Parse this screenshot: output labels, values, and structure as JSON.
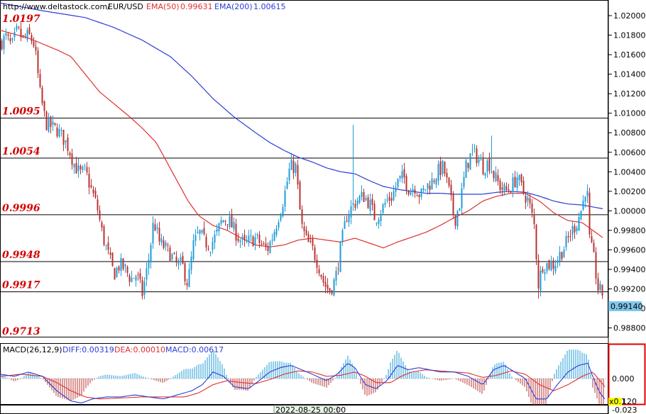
{
  "header": {
    "url": "http://www.deltastock.com/",
    "symbol": "EUR/USD",
    "ema50_label": "EMA(50)",
    "ema50_value": "0.99631",
    "ema200_label": "EMA(200)",
    "ema200_value": "1.00615"
  },
  "macd_header": {
    "name": "MACD(26,12,9)",
    "diff": "DIFF:0.00319",
    "dea": "DEA:0.00010",
    "macd": "MACD:0.00617"
  },
  "time_label": "2022-08-25 00:00",
  "price_badge": "0.99140",
  "macd_axis": {
    "zero_label": "0.000",
    "bottom_label": "-0.023",
    "scale_badge": "x0.1",
    "scale_value": "120"
  },
  "colors": {
    "bull": "#1f9bd7",
    "bear": "#b83232",
    "ema50": "#e03030",
    "ema200": "#2a3fd6",
    "level_text": "#d40000"
  },
  "chart_data": {
    "type": "candlestick",
    "symbol": "EUR/USD",
    "y_ticks": [
      1.02,
      1.018,
      1.016,
      1.014,
      1.012,
      1.01,
      1.008,
      1.006,
      1.004,
      1.002,
      1.0,
      0.998,
      0.996,
      0.994,
      0.992,
      0.99,
      0.988
    ],
    "y_tick_labels": [
      "1.02000",
      "1.01800",
      "1.01600",
      "1.01400",
      "1.01200",
      "1.01000",
      "1.00800",
      "1.00600",
      "1.00400",
      "1.00200",
      "1.00000",
      "0.99800",
      "0.99600",
      "0.99400",
      "0.99200",
      "0.99000",
      "0.98800"
    ],
    "ylim": [
      0.9871,
      1.0216
    ],
    "levels": [
      {
        "label": "1.0197",
        "value": 1.0197,
        "line": false
      },
      {
        "label": "1.0095",
        "value": 1.0095,
        "line": true
      },
      {
        "label": "1.0054",
        "value": 1.0054,
        "line": true
      },
      {
        "label": "0.9996",
        "value": 0.9996,
        "line": true
      },
      {
        "label": "0.9948",
        "value": 0.9948,
        "line": true
      },
      {
        "label": "0.9917",
        "value": 0.9917,
        "line": true
      },
      {
        "label": "0.9713",
        "value": 0.9713,
        "line": false
      }
    ],
    "close_anchors": [
      [
        0,
        1.0172
      ],
      [
        8,
        1.0178
      ],
      [
        16,
        1.0168
      ],
      [
        24,
        1.0185
      ],
      [
        32,
        1.0175
      ],
      [
        40,
        1.018
      ],
      [
        48,
        1.017
      ],
      [
        56,
        1.012
      ],
      [
        64,
        1.009
      ],
      [
        72,
        1.0086
      ],
      [
        80,
        1.0083
      ],
      [
        88,
        1.0075
      ],
      [
        96,
        1.0065
      ],
      [
        104,
        1.0048
      ],
      [
        112,
        1.0038
      ],
      [
        120,
        1.004
      ],
      [
        128,
        1.0022
      ],
      [
        136,
        1.0005
      ],
      [
        144,
        0.9975
      ],
      [
        152,
        0.9955
      ],
      [
        160,
        0.9935
      ],
      [
        168,
        0.9945
      ],
      [
        176,
        0.994
      ],
      [
        184,
        0.993
      ],
      [
        192,
        0.9935
      ],
      [
        200,
        0.9915
      ],
      [
        208,
        0.9945
      ],
      [
        216,
        0.999
      ],
      [
        224,
        0.9968
      ],
      [
        232,
        0.9962
      ],
      [
        240,
        0.9955
      ],
      [
        248,
        0.9945
      ],
      [
        256,
        0.9945
      ],
      [
        264,
        0.9925
      ],
      [
        272,
        0.9965
      ],
      [
        280,
        0.9978
      ],
      [
        288,
        0.9968
      ],
      [
        296,
        0.9965
      ],
      [
        304,
        0.9975
      ],
      [
        312,
        0.999
      ],
      [
        320,
        0.9992
      ],
      [
        328,
        0.9982
      ],
      [
        336,
        0.9972
      ],
      [
        344,
        0.9965
      ],
      [
        352,
        0.997
      ],
      [
        360,
        0.9972
      ],
      [
        368,
        0.9965
      ],
      [
        376,
        0.996
      ],
      [
        384,
        0.9975
      ],
      [
        392,
        0.9995
      ],
      [
        400,
        1.0015
      ],
      [
        408,
        1.0045
      ],
      [
        416,
        1.0045
      ],
      [
        424,
        0.9985
      ],
      [
        432,
        0.9968
      ],
      [
        440,
        0.996
      ],
      [
        448,
        0.9945
      ],
      [
        456,
        0.9925
      ],
      [
        464,
        0.9918
      ],
      [
        472,
        0.993
      ],
      [
        480,
        0.9965
      ],
      [
        488,
        0.9995
      ],
      [
        496,
        1.0005
      ],
      [
        504,
        1.0012
      ],
      [
        512,
        1.0015
      ],
      [
        520,
        1.0008
      ],
      [
        528,
        0.9992
      ],
      [
        536,
        1.0
      ],
      [
        544,
        1.001
      ],
      [
        552,
        1.0015
      ],
      [
        560,
        1.003
      ],
      [
        568,
        1.0035
      ],
      [
        576,
        1.0022
      ],
      [
        584,
        1.0025
      ],
      [
        592,
        1.0015
      ],
      [
        600,
        1.0025
      ],
      [
        608,
        1.003
      ],
      [
        616,
        1.004
      ],
      [
        624,
        1.0045
      ],
      [
        632,
        1.002
      ],
      [
        640,
        0.999
      ],
      [
        648,
        1.001
      ],
      [
        656,
        1.0045
      ],
      [
        664,
        1.006
      ],
      [
        672,
        1.0055
      ],
      [
        680,
        1.0045
      ],
      [
        688,
        1.005
      ],
      [
        696,
        1.0035
      ],
      [
        704,
        1.0025
      ],
      [
        712,
        1.002
      ],
      [
        720,
        1.0025
      ],
      [
        728,
        1.0035
      ],
      [
        736,
        1.002
      ],
      [
        744,
        1.001
      ],
      [
        752,
        0.9985
      ],
      [
        758,
        0.9925
      ],
      [
        764,
        0.9945
      ],
      [
        772,
        0.9945
      ],
      [
        780,
        0.9945
      ],
      [
        788,
        0.9955
      ],
      [
        796,
        0.9965
      ],
      [
        804,
        0.9978
      ],
      [
        812,
        0.9988
      ],
      [
        820,
        1.0005
      ],
      [
        826,
        1.003
      ],
      [
        830,
        0.997
      ],
      [
        836,
        0.995
      ],
      [
        842,
        0.992
      ],
      [
        850,
        0.9914
      ]
    ],
    "ema50_anchors": [
      [
        0,
        1.0185
      ],
      [
        40,
        1.0177
      ],
      [
        80,
        1.0165
      ],
      [
        100,
        1.0158
      ],
      [
        120,
        1.014
      ],
      [
        140,
        1.0122
      ],
      [
        160,
        1.011
      ],
      [
        180,
        1.0098
      ],
      [
        200,
        1.0085
      ],
      [
        220,
        1.007
      ],
      [
        235,
        1.005
      ],
      [
        250,
        1.003
      ],
      [
        265,
        1.001
      ],
      [
        280,
        0.9995
      ],
      [
        300,
        0.9985
      ],
      [
        320,
        0.998
      ],
      [
        340,
        0.9972
      ],
      [
        360,
        0.9965
      ],
      [
        380,
        0.9963
      ],
      [
        400,
        0.9965
      ],
      [
        420,
        0.997
      ],
      [
        440,
        0.9972
      ],
      [
        460,
        0.997
      ],
      [
        480,
        0.9968
      ],
      [
        500,
        0.9972
      ],
      [
        520,
        0.9967
      ],
      [
        540,
        0.9962
      ],
      [
        560,
        0.9968
      ],
      [
        580,
        0.9973
      ],
      [
        600,
        0.9978
      ],
      [
        620,
        0.9985
      ],
      [
        640,
        0.9993
      ],
      [
        660,
        1.0
      ],
      [
        680,
        1.001
      ],
      [
        700,
        1.0015
      ],
      [
        720,
        1.0018
      ],
      [
        740,
        1.0018
      ],
      [
        760,
        1.001
      ],
      [
        780,
        0.9998
      ],
      [
        800,
        0.999
      ],
      [
        820,
        0.9988
      ],
      [
        835,
        0.998
      ],
      [
        850,
        0.9972
      ]
    ],
    "ema200_anchors": [
      [
        0,
        1.0213
      ],
      [
        60,
        1.0205
      ],
      [
        120,
        1.0198
      ],
      [
        160,
        1.0188
      ],
      [
        200,
        1.0175
      ],
      [
        240,
        1.0158
      ],
      [
        270,
        1.0138
      ],
      [
        300,
        1.0115
      ],
      [
        330,
        1.0096
      ],
      [
        360,
        1.008
      ],
      [
        380,
        1.007
      ],
      [
        400,
        1.0062
      ],
      [
        420,
        1.0055
      ],
      [
        440,
        1.005
      ],
      [
        460,
        1.0044
      ],
      [
        480,
        1.004
      ],
      [
        500,
        1.0038
      ],
      [
        520,
        1.0031
      ],
      [
        540,
        1.0025
      ],
      [
        560,
        1.0022
      ],
      [
        580,
        1.002
      ],
      [
        600,
        1.0018
      ],
      [
        620,
        1.0018
      ],
      [
        640,
        1.0017
      ],
      [
        660,
        1.0017
      ],
      [
        680,
        1.0017
      ],
      [
        700,
        1.0019
      ],
      [
        720,
        1.002
      ],
      [
        740,
        1.0019
      ],
      [
        760,
        1.0015
      ],
      [
        780,
        1.001
      ],
      [
        800,
        1.0007
      ],
      [
        820,
        1.0006
      ],
      [
        850,
        1.0002
      ]
    ],
    "macd_diff_anchors": [
      [
        0,
        0.2
      ],
      [
        20,
        0.1
      ],
      [
        40,
        0.3
      ],
      [
        60,
        0.1
      ],
      [
        80,
        -0.6
      ],
      [
        100,
        -1.1
      ],
      [
        115,
        -1.2
      ],
      [
        130,
        -1.0
      ],
      [
        150,
        -0.9
      ],
      [
        170,
        -0.9
      ],
      [
        190,
        -0.8
      ],
      [
        210,
        -0.9
      ],
      [
        230,
        -1.0
      ],
      [
        250,
        -0.8
      ],
      [
        270,
        -0.6
      ],
      [
        285,
        -0.3
      ],
      [
        300,
        0.3
      ],
      [
        315,
        0.1
      ],
      [
        330,
        -0.4
      ],
      [
        350,
        -0.5
      ],
      [
        365,
        -0.1
      ],
      [
        380,
        0.3
      ],
      [
        395,
        0.5
      ],
      [
        410,
        0.6
      ],
      [
        425,
        0.4
      ],
      [
        440,
        0.2
      ],
      [
        460,
        -0.1
      ],
      [
        475,
        0.2
      ],
      [
        490,
        0.7
      ],
      [
        500,
        0.5
      ],
      [
        515,
        -0.3
      ],
      [
        530,
        -0.5
      ],
      [
        545,
        -0.1
      ],
      [
        560,
        0.6
      ],
      [
        575,
        0.4
      ],
      [
        590,
        0.5
      ],
      [
        605,
        0.4
      ],
      [
        620,
        0.3
      ],
      [
        640,
        0.3
      ],
      [
        660,
        0.1
      ],
      [
        680,
        -0.3
      ],
      [
        695,
        0.4
      ],
      [
        710,
        0.6
      ],
      [
        725,
        0.3
      ],
      [
        740,
        0.0
      ],
      [
        755,
        -1.0
      ],
      [
        770,
        -1.0
      ],
      [
        785,
        -0.3
      ],
      [
        800,
        0.3
      ],
      [
        815,
        0.6
      ],
      [
        828,
        0.7
      ],
      [
        835,
        0.1
      ],
      [
        845,
        -0.7
      ],
      [
        852,
        -1.0
      ]
    ],
    "macd_dea_anchors": [
      [
        0,
        0.1
      ],
      [
        30,
        0.2
      ],
      [
        60,
        0.1
      ],
      [
        80,
        -0.2
      ],
      [
        100,
        -0.6
      ],
      [
        120,
        -0.9
      ],
      [
        140,
        -1.0
      ],
      [
        170,
        -0.95
      ],
      [
        200,
        -0.9
      ],
      [
        230,
        -0.9
      ],
      [
        260,
        -0.9
      ],
      [
        280,
        -0.7
      ],
      [
        300,
        -0.3
      ],
      [
        320,
        -0.1
      ],
      [
        340,
        -0.2
      ],
      [
        360,
        -0.25
      ],
      [
        380,
        -0.05
      ],
      [
        400,
        0.2
      ],
      [
        420,
        0.35
      ],
      [
        440,
        0.3
      ],
      [
        460,
        0.1
      ],
      [
        480,
        0.15
      ],
      [
        500,
        0.3
      ],
      [
        515,
        0.1
      ],
      [
        530,
        -0.2
      ],
      [
        550,
        -0.2
      ],
      [
        565,
        0.1
      ],
      [
        580,
        0.3
      ],
      [
        600,
        0.4
      ],
      [
        620,
        0.35
      ],
      [
        640,
        0.3
      ],
      [
        660,
        0.25
      ],
      [
        680,
        0.05
      ],
      [
        700,
        0.15
      ],
      [
        720,
        0.35
      ],
      [
        740,
        0.2
      ],
      [
        760,
        -0.3
      ],
      [
        780,
        -0.6
      ],
      [
        800,
        -0.3
      ],
      [
        820,
        0.1
      ],
      [
        835,
        0.3
      ],
      [
        845,
        -0.1
      ],
      [
        852,
        -0.4
      ]
    ],
    "macd_ylim": [
      -1.25,
      1.1
    ]
  }
}
